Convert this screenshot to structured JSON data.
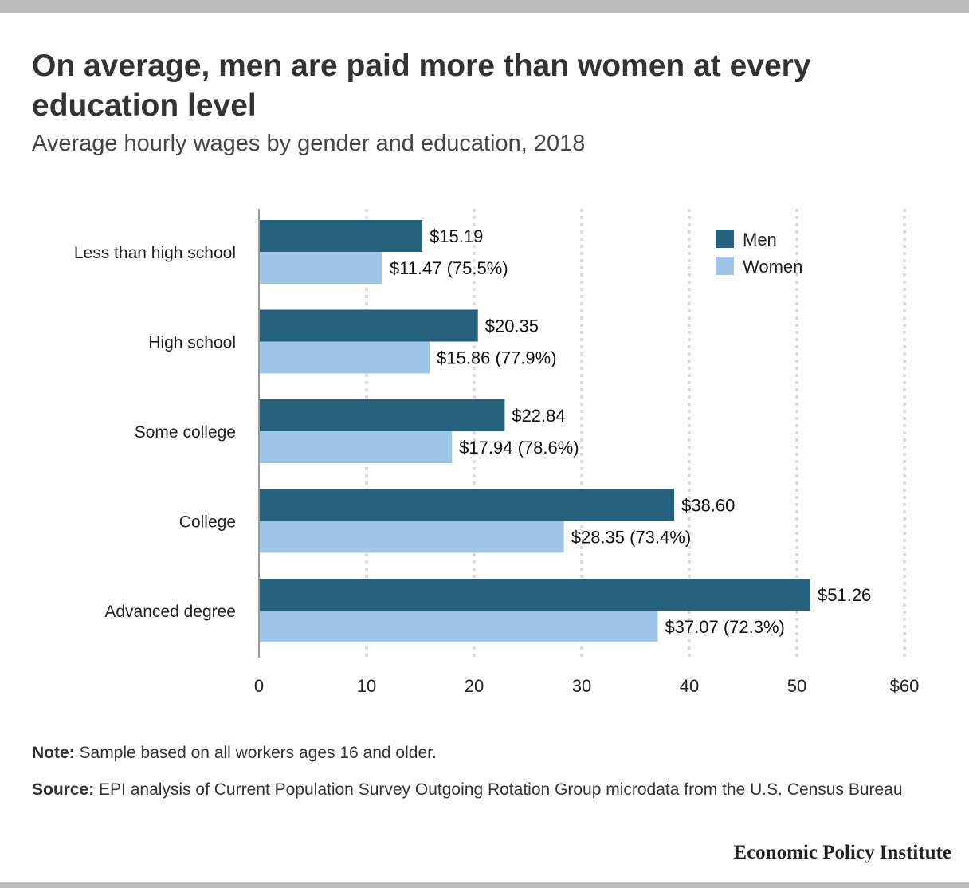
{
  "chart_data": {
    "type": "bar",
    "orientation": "horizontal",
    "title": "On average, men are paid more than women at every education level",
    "subtitle": "Average hourly wages by gender and education, 2018",
    "categories": [
      "Less than high school",
      "High school",
      "Some college",
      "College",
      "Advanced degree"
    ],
    "series": [
      {
        "name": "Men",
        "color": "#25607f",
        "values": [
          15.19,
          20.35,
          22.84,
          38.6,
          51.26
        ],
        "labels": [
          "$15.19",
          "$20.35",
          "$22.84",
          "$38.60",
          "$51.26"
        ]
      },
      {
        "name": "Women",
        "color": "#9fc5e8",
        "values": [
          11.47,
          15.86,
          17.94,
          28.35,
          37.07
        ],
        "labels": [
          "$11.47 (75.5%)",
          "$15.86 (77.9%)",
          "$17.94 (78.6%)",
          "$28.35 (73.4%)",
          "$37.07 (72.3%)"
        ]
      }
    ],
    "xlim": [
      0,
      60
    ],
    "xticks": [
      0,
      10,
      20,
      30,
      40,
      50,
      60
    ],
    "xtick_labels": [
      "0",
      "10",
      "20",
      "30",
      "40",
      "50",
      "$60"
    ],
    "grid": true,
    "legend_position": "top-right"
  },
  "footer": {
    "note_label": "Note:",
    "note_text": " Sample based on all workers ages 16 and older.",
    "source_label": "Source:",
    "source_text": " EPI analysis of Current Population Survey Outgoing Rotation Group microdata from the U.S. Census Bureau",
    "brand": "Economic Policy Institute"
  }
}
